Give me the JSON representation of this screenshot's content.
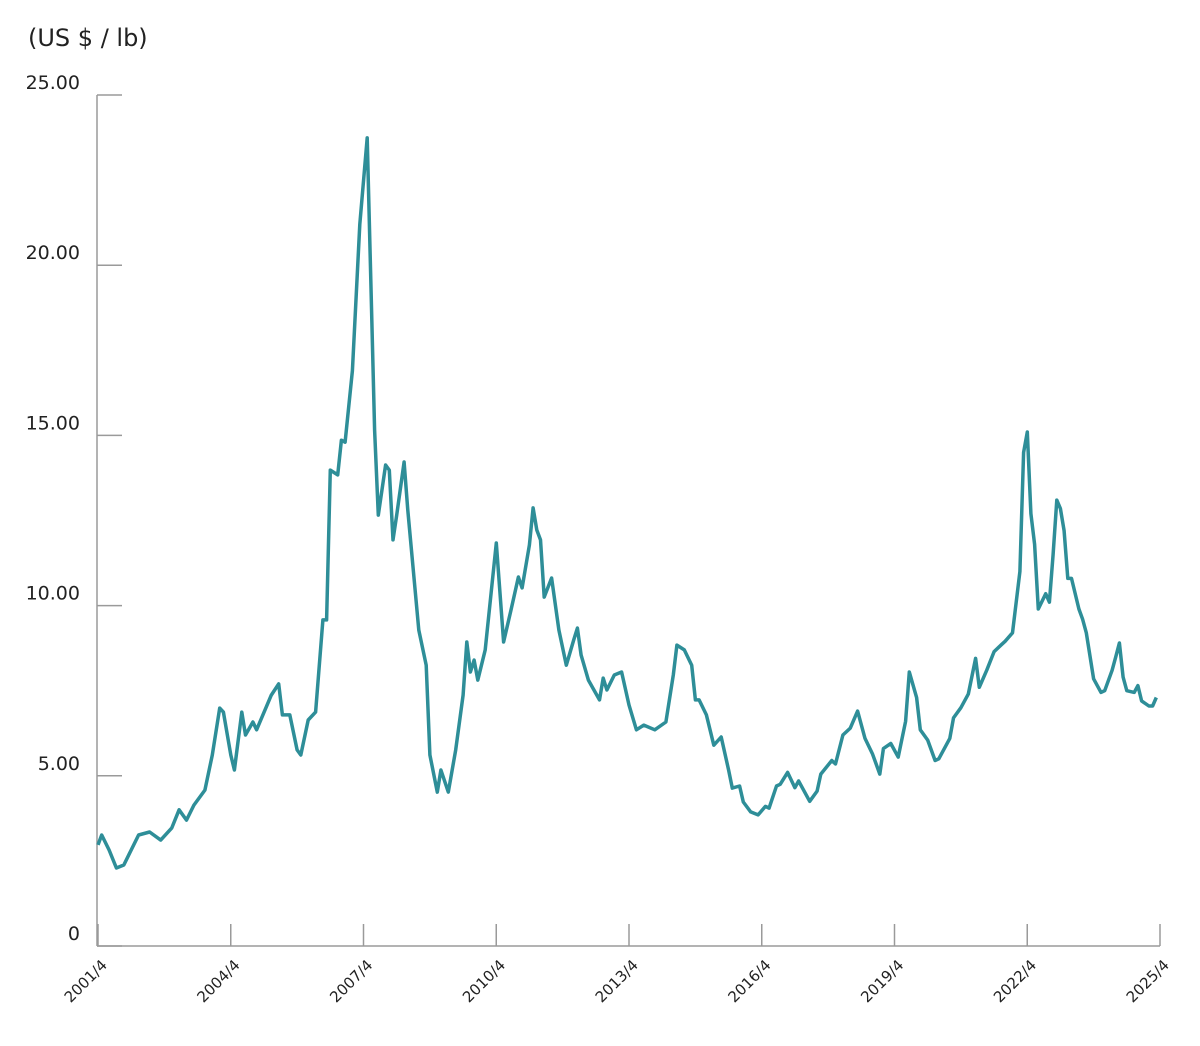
{
  "chart_data": {
    "type": "line",
    "title": "(US $ / lb)",
    "x": [
      "2001/4",
      "2001/5",
      "2001/7",
      "2001/9",
      "2001/11",
      "2002/1",
      "2002/3",
      "2002/6",
      "2002/9",
      "2002/12",
      "2003/2",
      "2003/4",
      "2003/6",
      "2003/9",
      "2003/11",
      "2004/1",
      "2004/2",
      "2004/4",
      "2004/5",
      "2004/7",
      "2004/8",
      "2004/10",
      "2004/11",
      "2005/3",
      "2005/5",
      "2005/6",
      "2005/8",
      "2005/10",
      "2005/11",
      "2006/1",
      "2006/3",
      "2006/5",
      "2006/6",
      "2006/7",
      "2006/9",
      "2006/10",
      "2006/11",
      "2007/1",
      "2007/3",
      "2007/5",
      "2007/7",
      "2007/8",
      "2007/10",
      "2007/11",
      "2007/12",
      "2008/1",
      "2008/3",
      "2008/4",
      "2008/7",
      "2008/9",
      "2008/10",
      "2008/12",
      "2009/1",
      "2009/3",
      "2009/5",
      "2009/7",
      "2009/8",
      "2009/9",
      "2009/10",
      "2009/11",
      "2010/1",
      "2010/4",
      "2010/6",
      "2010/8",
      "2010/10",
      "2010/11",
      "2011/1",
      "2011/2",
      "2011/3",
      "2011/4",
      "2011/5",
      "2011/7",
      "2011/9",
      "2011/11",
      "2012/1",
      "2012/2",
      "2012/3",
      "2012/5",
      "2012/8",
      "2012/9",
      "2012/10",
      "2012/12",
      "2013/2",
      "2013/4",
      "2013/6",
      "2013/8",
      "2013/11",
      "2014/2",
      "2014/4",
      "2014/5",
      "2014/7",
      "2014/9",
      "2014/10",
      "2014/11",
      "2015/1",
      "2015/3",
      "2015/5",
      "2015/7",
      "2015/8",
      "2015/10",
      "2015/11",
      "2016/1",
      "2016/3",
      "2016/5",
      "2016/6",
      "2016/8",
      "2016/9",
      "2016/11",
      "2017/1",
      "2017/2",
      "2017/5",
      "2017/7",
      "2017/8",
      "2017/11",
      "2017/12",
      "2018/2",
      "2018/4",
      "2018/6",
      "2018/8",
      "2018/10",
      "2018/12",
      "2019/1",
      "2019/3",
      "2019/5",
      "2019/7",
      "2019/8",
      "2019/10",
      "2019/11",
      "2020/1",
      "2020/3",
      "2020/4",
      "2020/7",
      "2020/8",
      "2020/10",
      "2020/12",
      "2021/2",
      "2021/3",
      "2021/5",
      "2021/7",
      "2021/9",
      "2021/10",
      "2021/12",
      "2022/2",
      "2022/3",
      "2022/4",
      "2022/5",
      "2022/6",
      "2022/7",
      "2022/9",
      "2022/10",
      "2022/11",
      "2022/12",
      "2023/1",
      "2023/2",
      "2023/3",
      "2023/4",
      "2023/6",
      "2023/7",
      "2023/8",
      "2023/10",
      "2023/12",
      "2024/1",
      "2024/3",
      "2024/4",
      "2024/5",
      "2024/6",
      "2024/7",
      "2024/9",
      "2024/10",
      "2024/11",
      "2025/1",
      "2025/2",
      "2025/3"
    ],
    "values": [
      2.97,
      3.26,
      2.82,
      2.29,
      2.38,
      2.82,
      3.26,
      3.35,
      3.11,
      3.47,
      4.0,
      3.7,
      4.14,
      4.58,
      5.61,
      6.99,
      6.87,
      5.61,
      5.17,
      6.87,
      6.2,
      6.58,
      6.35,
      7.37,
      7.7,
      6.79,
      6.79,
      5.76,
      5.61,
      6.64,
      6.87,
      9.58,
      9.58,
      13.98,
      13.84,
      14.86,
      14.8,
      16.9,
      21.2,
      23.74,
      15.16,
      12.66,
      14.13,
      13.98,
      11.93,
      12.66,
      14.22,
      12.8,
      9.28,
      8.25,
      5.61,
      4.52,
      5.17,
      4.52,
      5.76,
      7.37,
      8.93,
      8.05,
      8.4,
      7.81,
      8.7,
      11.84,
      8.93,
      9.87,
      10.84,
      10.52,
      11.78,
      12.87,
      12.22,
      11.93,
      10.25,
      10.81,
      9.28,
      8.25,
      8.99,
      9.34,
      8.55,
      7.81,
      7.23,
      7.87,
      7.52,
      7.96,
      8.05,
      7.08,
      6.35,
      6.49,
      6.35,
      6.58,
      7.96,
      8.84,
      8.7,
      8.25,
      7.23,
      7.23,
      6.79,
      5.9,
      6.14,
      5.17,
      4.64,
      4.7,
      4.23,
      3.94,
      3.85,
      4.1,
      4.05,
      4.7,
      4.75,
      5.1,
      4.65,
      4.85,
      4.25,
      4.55,
      5.05,
      5.45,
      5.35,
      6.2,
      6.4,
      6.9,
      6.1,
      5.65,
      5.05,
      5.8,
      5.95,
      5.55,
      6.6,
      8.05,
      7.3,
      6.35,
      6.05,
      5.45,
      5.5,
      6.1,
      6.7,
      7.0,
      7.4,
      8.45,
      7.6,
      8.1,
      8.65,
      8.85,
      8.95,
      9.2,
      11.0,
      14.5,
      15.1,
      12.7,
      11.8,
      9.9,
      10.35,
      10.1,
      11.5,
      13.1,
      12.85,
      12.2,
      10.8,
      10.8,
      9.9,
      9.6,
      9.2,
      7.85,
      7.45,
      7.5,
      8.1,
      8.5,
      8.9,
      7.9,
      7.5,
      7.45,
      7.65,
      7.2,
      7.05,
      7.05,
      7.3
    ],
    "color": "#2e8e98",
    "xlim": [
      "2001/4",
      "2025/4"
    ],
    "xticks": [
      "2001/4",
      "2004/4",
      "2007/4",
      "2010/4",
      "2013/4",
      "2016/4",
      "2019/4",
      "2022/4",
      "2025/4"
    ],
    "ylim": [
      0,
      25
    ],
    "yticks": [
      0,
      {
        "value": 5,
        "label": "5.00"
      },
      {
        "value": 10,
        "label": "10.00"
      },
      {
        "value": 15,
        "label": "15.00"
      },
      {
        "value": 20,
        "label": "20.00"
      },
      {
        "value": 25,
        "label": "25.00"
      }
    ]
  }
}
